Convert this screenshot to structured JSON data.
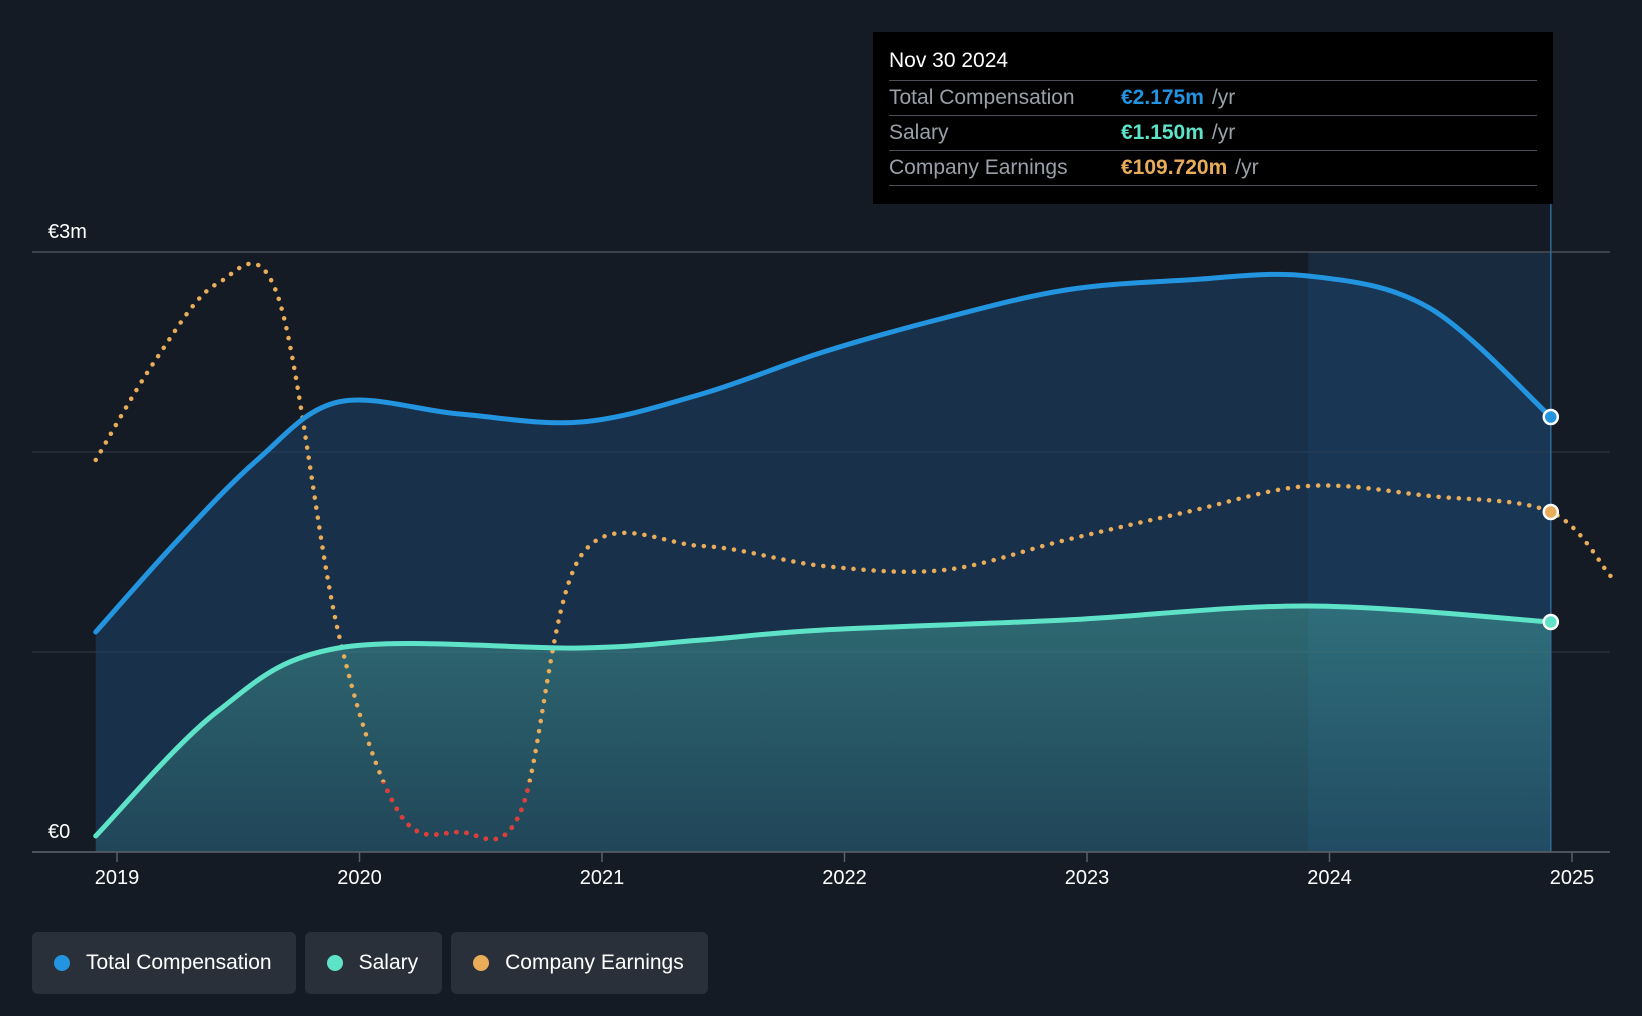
{
  "chart_data": {
    "type": "area",
    "y_axis": {
      "min": 0,
      "max": 3000000,
      "ticks": [
        {
          "value": 0,
          "label": "€0"
        },
        {
          "value": 3000000,
          "label": "€3m"
        }
      ]
    },
    "x_axis": {
      "ticks": [
        "2019",
        "2020",
        "2021",
        "2022",
        "2023",
        "2024",
        "2025"
      ]
    },
    "series": [
      {
        "name": "Total Compensation",
        "color": "#2394df",
        "style": "solid-area",
        "points": [
          {
            "x": "2018-11-30",
            "y": 1100000
          },
          {
            "x": "2019-03-31",
            "y": 1550000
          },
          {
            "x": "2019-07-31",
            "y": 1960000
          },
          {
            "x": "2019-11-30",
            "y": 2250000
          },
          {
            "x": "2020-05-31",
            "y": 2190000
          },
          {
            "x": "2020-11-30",
            "y": 2150000
          },
          {
            "x": "2021-05-31",
            "y": 2290000
          },
          {
            "x": "2021-11-30",
            "y": 2500000
          },
          {
            "x": "2022-05-31",
            "y": 2670000
          },
          {
            "x": "2022-11-30",
            "y": 2810000
          },
          {
            "x": "2023-05-31",
            "y": 2860000
          },
          {
            "x": "2023-11-30",
            "y": 2880000
          },
          {
            "x": "2024-05-31",
            "y": 2720000
          },
          {
            "x": "2024-11-30",
            "y": 2175000
          }
        ]
      },
      {
        "name": "Salary",
        "color": "#5ee3c9",
        "style": "solid-area",
        "points": [
          {
            "x": "2018-11-30",
            "y": 80000
          },
          {
            "x": "2019-05-31",
            "y": 700000
          },
          {
            "x": "2019-11-30",
            "y": 1020000
          },
          {
            "x": "2020-11-30",
            "y": 1020000
          },
          {
            "x": "2021-05-31",
            "y": 1060000
          },
          {
            "x": "2021-11-30",
            "y": 1110000
          },
          {
            "x": "2022-11-30",
            "y": 1160000
          },
          {
            "x": "2023-11-30",
            "y": 1230000
          },
          {
            "x": "2024-11-30",
            "y": 1150000
          }
        ]
      },
      {
        "name": "Company Earnings",
        "color": "#e9ad5a",
        "negative_color": "#e2393a",
        "style": "dotted",
        "points": [
          {
            "x": "2018-11-30",
            "y": 1960000
          },
          {
            "x": "2019-02-28",
            "y": 2460000
          },
          {
            "x": "2019-05-31",
            "y": 2840000
          },
          {
            "x": "2019-08-31",
            "y": 2780000
          },
          {
            "x": "2019-11-30",
            "y": 1100000
          },
          {
            "x": "2020-02-29",
            "y": 200000
          },
          {
            "x": "2020-05-31",
            "y": 100000
          },
          {
            "x": "2020-08-31",
            "y": 200000
          },
          {
            "x": "2020-11-30",
            "y": 1480000
          },
          {
            "x": "2021-05-31",
            "y": 1530000
          },
          {
            "x": "2021-11-30",
            "y": 1430000
          },
          {
            "x": "2022-05-31",
            "y": 1410000
          },
          {
            "x": "2022-11-30",
            "y": 1560000
          },
          {
            "x": "2023-05-31",
            "y": 1700000
          },
          {
            "x": "2023-11-30",
            "y": 1830000
          },
          {
            "x": "2024-05-31",
            "y": 1780000
          },
          {
            "x": "2024-11-30",
            "y": 1700000
          },
          {
            "x": "2025-02-28",
            "y": 1380000
          }
        ]
      }
    ],
    "highlight_range": {
      "from": "2023-11-30",
      "to": "2024-11-30"
    },
    "grid": true,
    "legend_position": "bottom-left"
  },
  "tooltip": {
    "date": "Nov 30 2024",
    "rows": [
      {
        "label": "Total Compensation",
        "value": "€2.175m",
        "unit": "/yr",
        "color": "#2394df"
      },
      {
        "label": "Salary",
        "value": "€1.150m",
        "unit": "/yr",
        "color": "#5ee3c9"
      },
      {
        "label": "Company Earnings",
        "value": "€109.720m",
        "unit": "/yr",
        "color": "#e9ad5a"
      }
    ]
  },
  "legend": [
    {
      "label": "Total Compensation",
      "color": "#2394df"
    },
    {
      "label": "Salary",
      "color": "#5ee3c9"
    },
    {
      "label": "Company Earnings",
      "color": "#e9ad5a"
    }
  ]
}
